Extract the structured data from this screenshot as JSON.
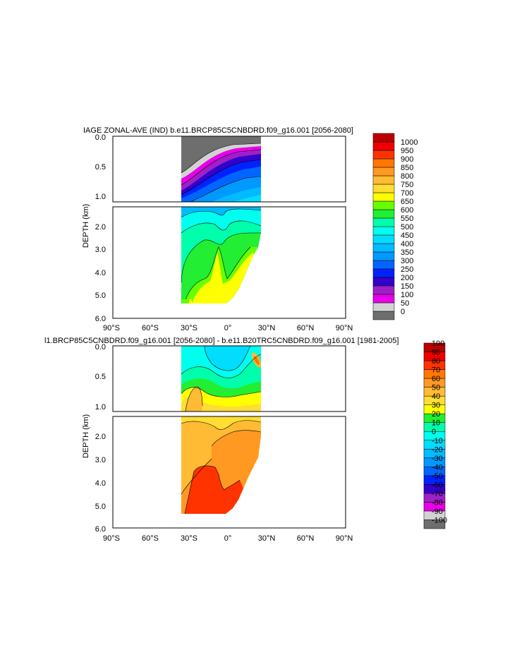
{
  "chart_data": [
    {
      "type": "heatmap",
      "title": "IAGE ZONAL-AVE (IND) b.e11.BRCP85C5CNBDRD.f09_g16.001 [2056-2080]",
      "xlabel": "",
      "ylabel": "DEPTH (km)",
      "x_ticks": [
        "90°S",
        "60°S",
        "30°S",
        "0°",
        "30°N",
        "60°N",
        "90°N"
      ],
      "y_ticks_upper": [
        "0.0",
        "0.5",
        "1.0"
      ],
      "y_ticks_lower": [
        "2.0",
        "3.0",
        "4.0",
        "5.0",
        "6.0"
      ],
      "xlim": [
        -90,
        90
      ],
      "ylim_upper": [
        0,
        1.1
      ],
      "ylim_lower": [
        1.1,
        6.0
      ],
      "colorbar": {
        "labels": [
          "0",
          "50",
          "100",
          "150",
          "200",
          "250",
          "300",
          "350",
          "400",
          "450",
          "500",
          "550",
          "600",
          "650",
          "700",
          "750",
          "800",
          "850",
          "900",
          "950",
          "1000"
        ],
        "colors": [
          "#6e6e6e",
          "#d2d2d2",
          "#e800e8",
          "#a020c8",
          "#3300cc",
          "#0022ff",
          "#0066ff",
          "#0099ff",
          "#00bbff",
          "#00ddff",
          "#00ffee",
          "#00ffaa",
          "#22ee33",
          "#66ff00",
          "#ffff00",
          "#ffdd33",
          "#ffbb33",
          "#ff9922",
          "#ff7700",
          "#ff3300",
          "#ee0000",
          "#bb0000"
        ]
      }
    },
    {
      "type": "heatmap",
      "title": "l1.BRCP85C5CNBDRD.f09_g16.001 [2056-2080] - b.e11.B20TRC5CNBDRD.f09_g16.001 [1981-2005]",
      "xlabel": "",
      "ylabel": "DEPTH (km)",
      "x_ticks": [
        "90°S",
        "60°S",
        "30°S",
        "0°",
        "30°N",
        "60°N",
        "90°N"
      ],
      "y_ticks_upper": [
        "0.0",
        "0.5",
        "1.0"
      ],
      "y_ticks_lower": [
        "2.0",
        "3.0",
        "4.0",
        "5.0",
        "6.0"
      ],
      "xlim": [
        -90,
        90
      ],
      "ylim_upper": [
        0,
        1.1
      ],
      "ylim_lower": [
        1.1,
        6.0
      ],
      "colorbar": {
        "labels": [
          "-100",
          "-90",
          "-80",
          "-70",
          "-60",
          "-50",
          "-40",
          "-30",
          "-20",
          "-10",
          "0",
          "10",
          "20",
          "30",
          "40",
          "50",
          "60",
          "70",
          "80",
          "90",
          "100"
        ],
        "colors": [
          "#6e6e6e",
          "#d2d2d2",
          "#e800e8",
          "#a020c8",
          "#3300cc",
          "#0022ff",
          "#0066ff",
          "#0099ff",
          "#00bbff",
          "#00ddff",
          "#00ffee",
          "#00ffaa",
          "#22ee33",
          "#ffff00",
          "#ffdd33",
          "#ffbb33",
          "#ff9922",
          "#ff7700",
          "#ff3300",
          "#ee0000",
          "#bb0000"
        ]
      }
    }
  ]
}
